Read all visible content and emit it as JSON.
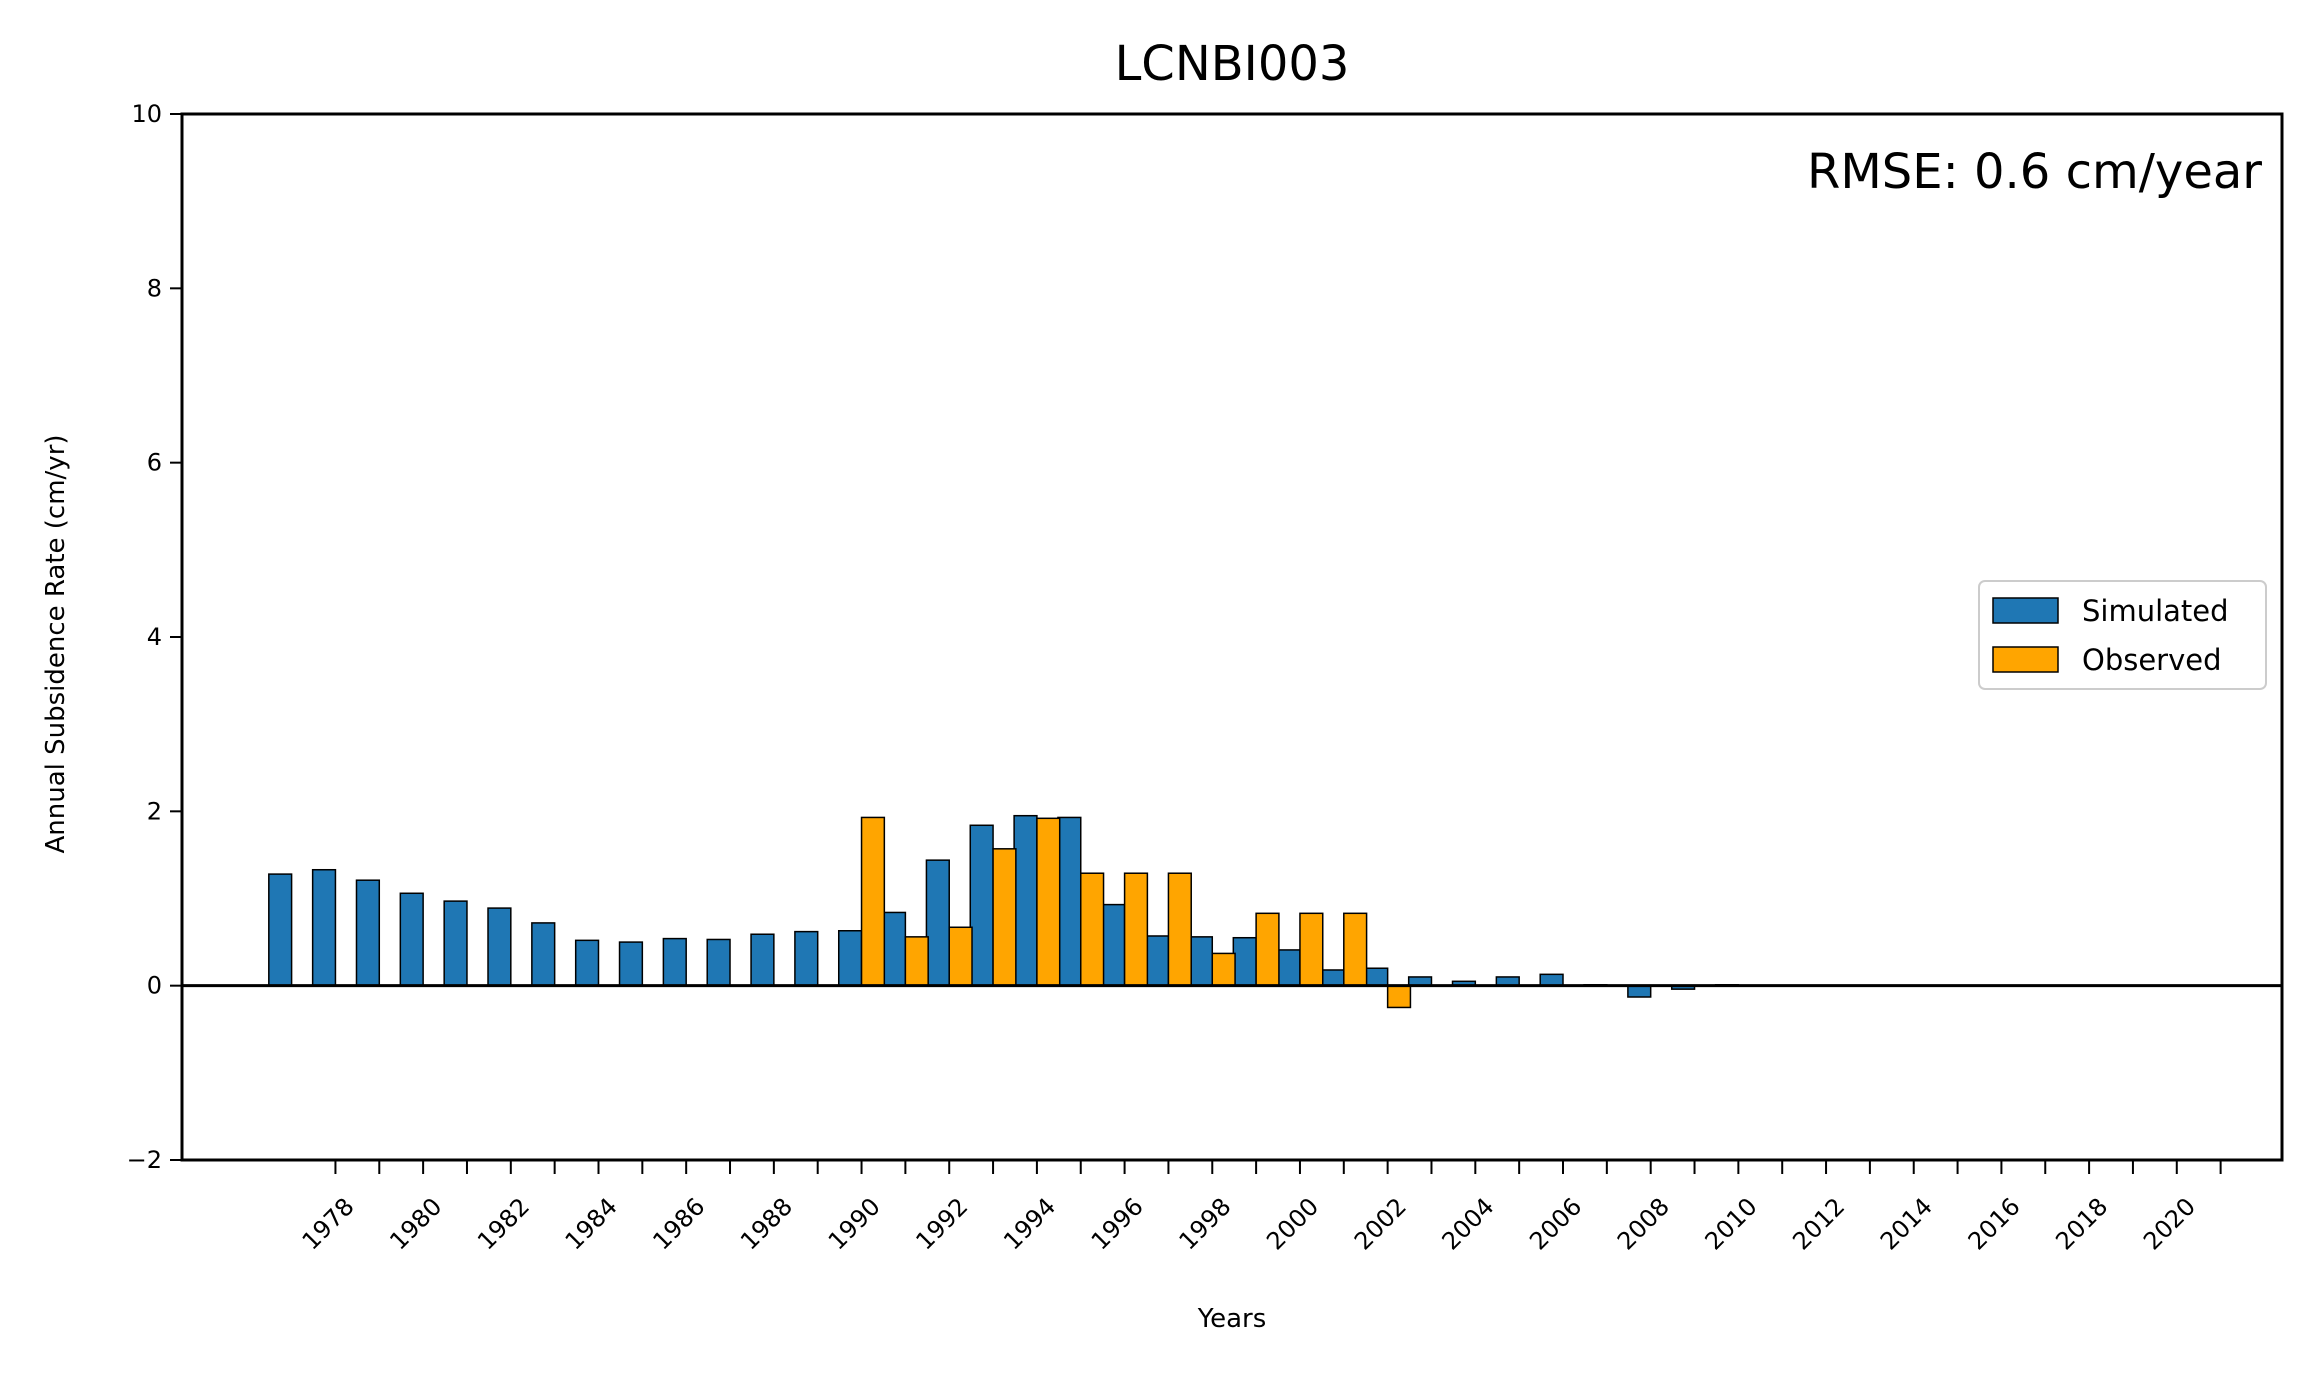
{
  "chart_data": {
    "type": "bar",
    "title": "LCNBI003",
    "xlabel": "Years",
    "ylabel": "Annual Subsidence Rate (cm/yr)",
    "annotation": "RMSE: 0.6 cm/year",
    "ylim": [
      -2,
      10
    ],
    "xlim": [
      1974.5,
      2022.4
    ],
    "yticks": [
      "−2",
      "0",
      "2",
      "4",
      "6",
      "8",
      "10"
    ],
    "xticks": [
      "1978",
      "1980",
      "1982",
      "1984",
      "1986",
      "1988",
      "1990",
      "1992",
      "1994",
      "1996",
      "1998",
      "2000",
      "2002",
      "2004",
      "2006",
      "2008",
      "2010",
      "2012",
      "2014",
      "2016",
      "2018",
      "2020"
    ],
    "grid": false,
    "legend_position": "center-right",
    "zero_line": true,
    "series": [
      {
        "name": "Simulated",
        "color": "#1f77b4",
        "x": [
          1977,
          1978,
          1979,
          1980,
          1981,
          1982,
          1983,
          1984,
          1985,
          1986,
          1987,
          1988,
          1989,
          1990,
          1991,
          1992,
          1993,
          1994,
          1995,
          1996,
          1997,
          1998,
          1999,
          2000,
          2001,
          2002,
          2003,
          2004,
          2005,
          2006,
          2007,
          2008,
          2009,
          2010
        ],
        "values": [
          1.28,
          1.33,
          1.21,
          1.06,
          0.97,
          0.89,
          0.72,
          0.52,
          0.5,
          0.54,
          0.53,
          0.59,
          0.62,
          0.63,
          0.84,
          1.44,
          1.84,
          1.95,
          1.93,
          0.93,
          0.57,
          0.56,
          0.55,
          0.41,
          0.18,
          0.2,
          0.1,
          0.05,
          0.1,
          0.13,
          0.01,
          -0.13,
          -0.04,
          0.01
        ]
      },
      {
        "name": "Observed",
        "color": "#ffa500",
        "x": [
          1990,
          1991,
          1992,
          1993,
          1994,
          1995,
          1996,
          1997,
          1998,
          1999,
          2000,
          2001,
          2002
        ],
        "values": [
          1.93,
          0.56,
          0.67,
          1.57,
          1.92,
          1.29,
          1.29,
          1.29,
          0.37,
          0.83,
          0.83,
          0.83,
          -0.25
        ]
      }
    ]
  }
}
